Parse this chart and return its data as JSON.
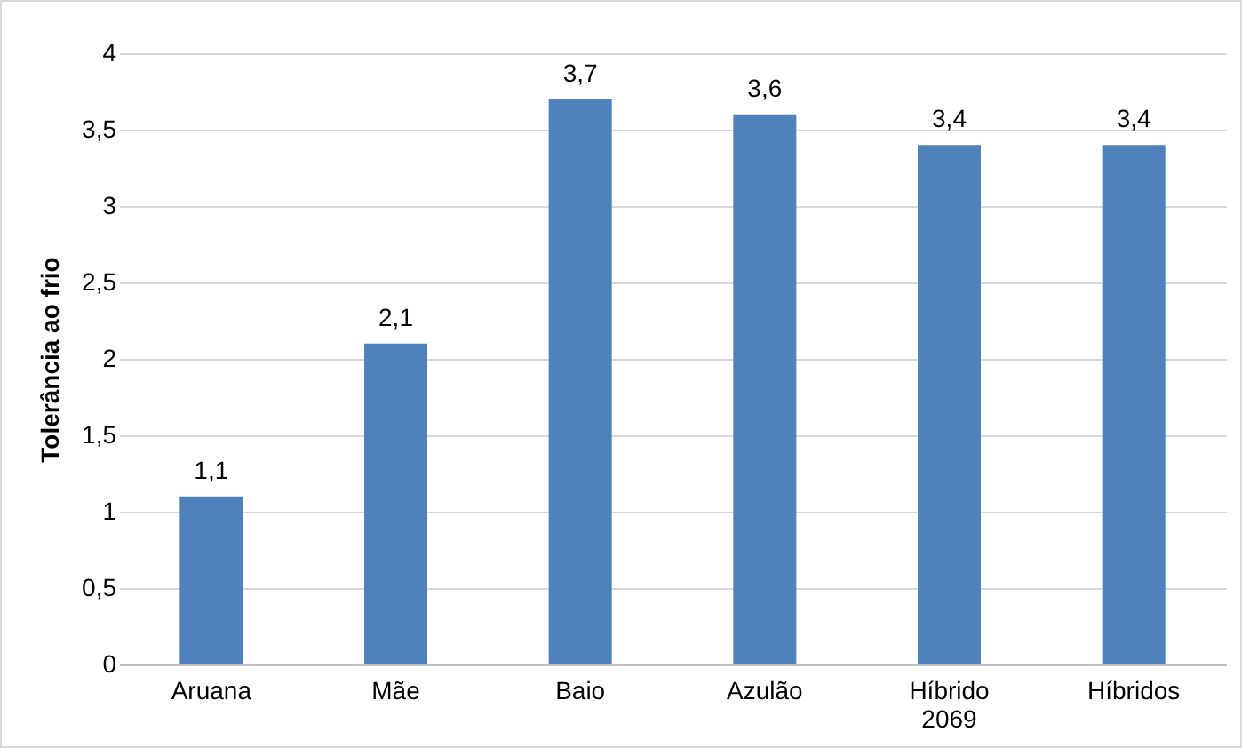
{
  "chart_data": {
    "type": "bar",
    "ylabel": "Tolerância ao frio",
    "categories": [
      "Aruana",
      "Mãe",
      "Baio",
      "Azulão",
      "Híbrido 2069",
      "Híbridos"
    ],
    "values": [
      1.1,
      2.1,
      3.7,
      3.6,
      3.4,
      3.4
    ],
    "value_labels": [
      "1,1",
      "2,1",
      "3,7",
      "3,6",
      "3,4",
      "3,4"
    ],
    "color": "#4f81bd",
    "ylim": [
      0,
      4
    ],
    "yticks": [
      0,
      {
        "value": 0.5,
        "label": "0,5"
      },
      1,
      {
        "value": 1.5,
        "label": "1,5"
      },
      2,
      {
        "value": 2.5,
        "label": "2,5"
      },
      3,
      {
        "value": 3.5,
        "label": "3,5"
      },
      4
    ],
    "grid": true
  }
}
